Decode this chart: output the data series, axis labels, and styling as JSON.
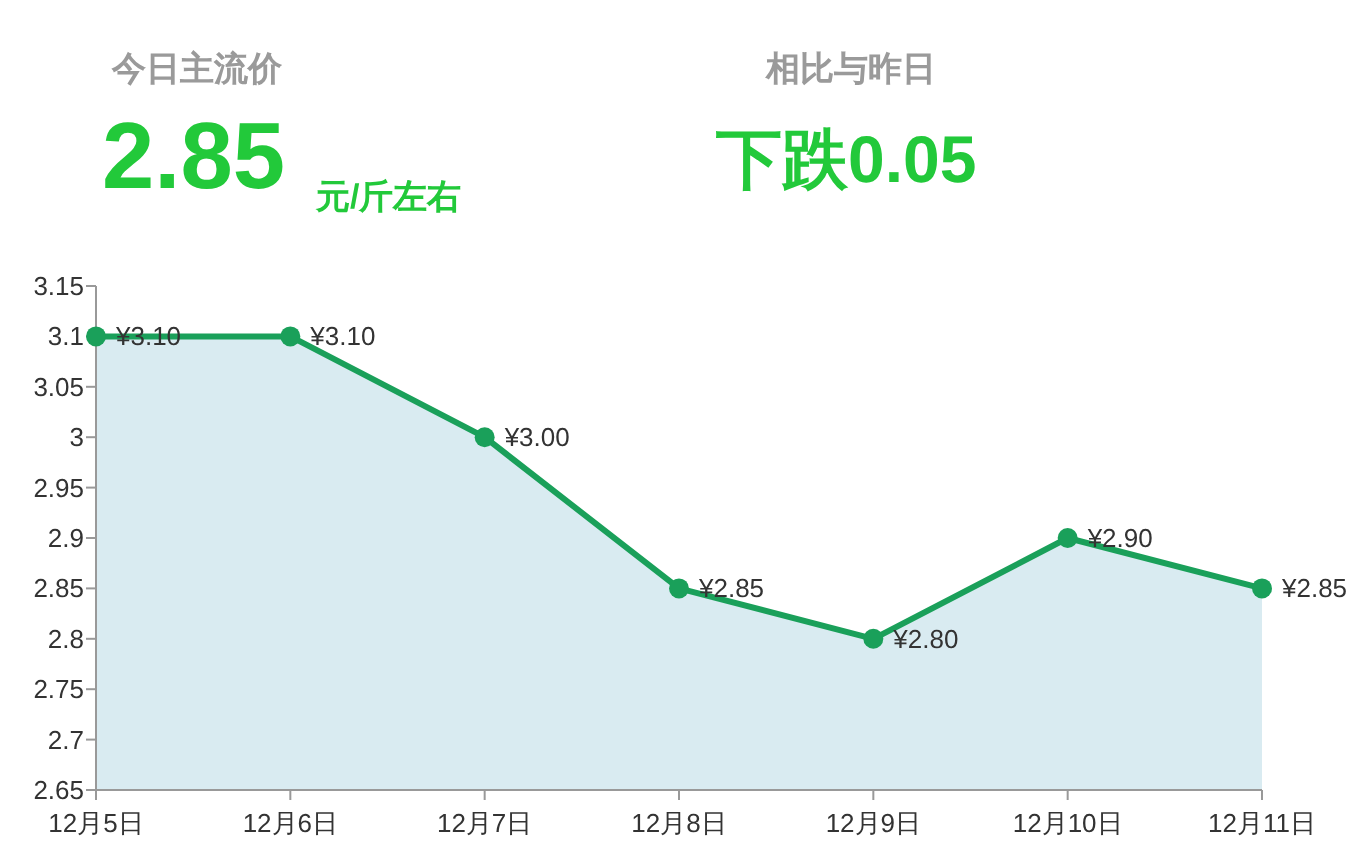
{
  "chart_data": [
    {
      "type": "other",
      "annotations": [
        "今日主流价",
        "2.85",
        "元/斤左右",
        "相比与昨日",
        "下跌0.05"
      ]
    },
    {
      "type": "area",
      "categories": [
        "12月5日",
        "12月6日",
        "12月7日",
        "12月8日",
        "12月9日",
        "12月10日",
        "12月11日"
      ],
      "series": [
        {
          "color": "#1aa05a",
          "values": [
            3.1,
            3.1,
            3.0,
            2.85,
            2.8,
            2.9,
            2.85
          ],
          "value_labels": [
            "¥3.10",
            "¥3.10",
            "¥3.00",
            "¥2.85",
            "¥2.80",
            "¥2.90",
            "¥2.85"
          ]
        }
      ],
      "ylim": [
        2.65,
        3.15
      ],
      "yticks": [
        2.65,
        2.7,
        2.75,
        2.8,
        2.85,
        2.9,
        2.95,
        3,
        3.05,
        3.1,
        3.15
      ],
      "marker": "circle"
    }
  ]
}
